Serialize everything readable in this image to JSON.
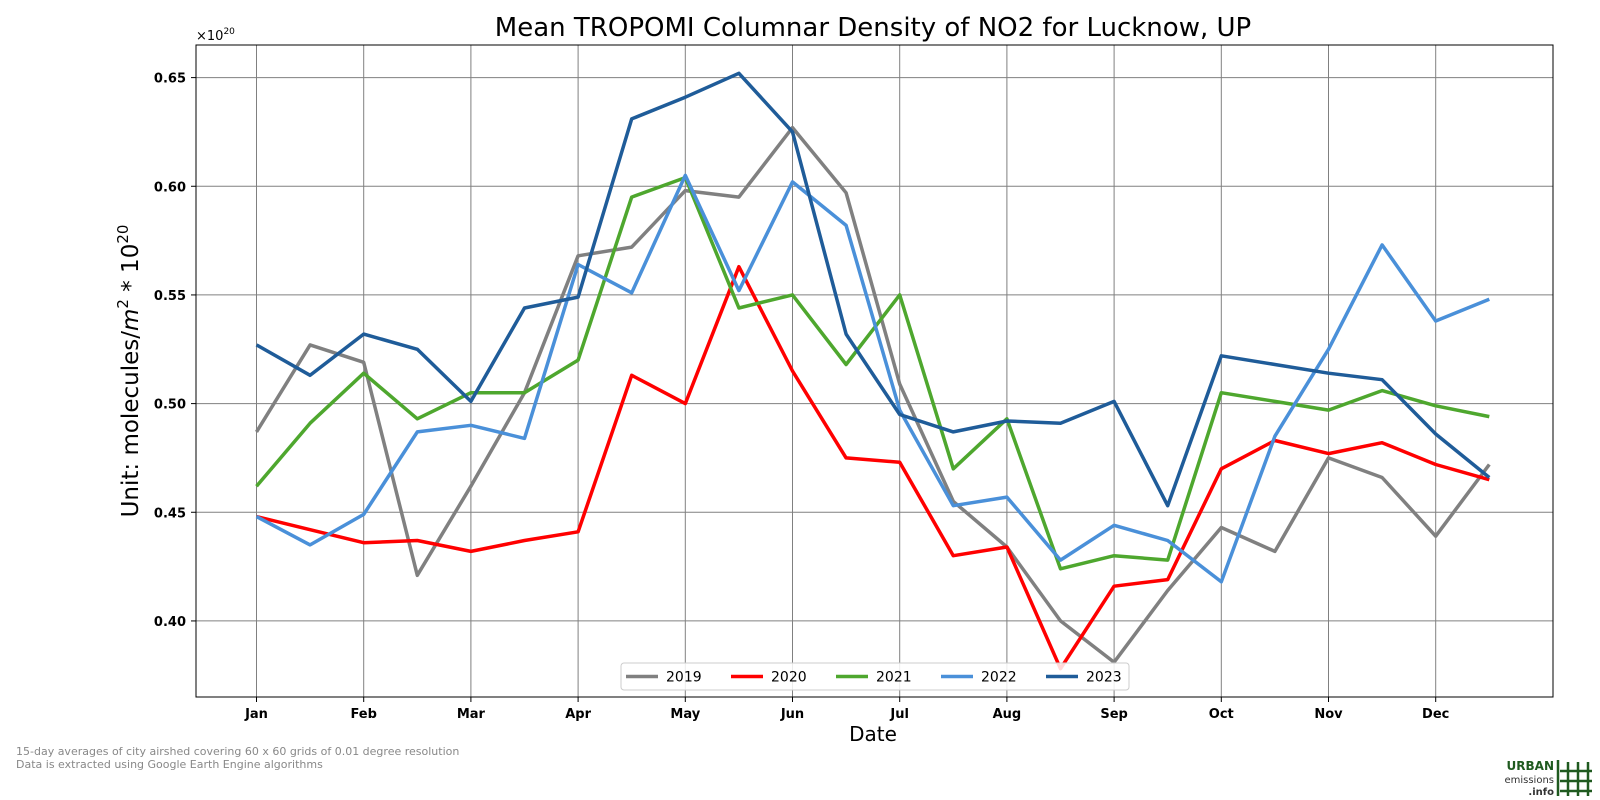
{
  "chart_data": {
    "type": "line",
    "title": "Mean TROPOMI Columnar Density of NO2 for Lucknow, UP",
    "xlabel": "Date",
    "ylabel_prefix": "Unit: molecules/",
    "ylabel_m": "m",
    "ylabel_exp1": "2",
    "ylabel_mid": " * 10",
    "ylabel_exp2": "20",
    "offset_base": "×10",
    "offset_exp": "20",
    "ylim": [
      0.365,
      0.665
    ],
    "yticks": [
      "0.40",
      "0.45",
      "0.50",
      "0.55",
      "0.60",
      "0.65"
    ],
    "month_labels": [
      "Jan",
      "Feb",
      "Mar",
      "Apr",
      "May",
      "Jun",
      "Jul",
      "Aug",
      "Sep",
      "Oct",
      "Nov",
      "Dec"
    ],
    "x": [
      "Jan 1",
      "Jan 16",
      "Feb 1",
      "Feb 16",
      "Mar 1",
      "Mar 16",
      "Apr 1",
      "Apr 16",
      "May 1",
      "May 16",
      "Jun 1",
      "Jun 16",
      "Jul 1",
      "Jul 16",
      "Aug 1",
      "Aug 16",
      "Sep 1",
      "Sep 16",
      "Oct 1",
      "Oct 16",
      "Nov 1",
      "Nov 16",
      "Dec 1",
      "Dec 16"
    ],
    "grid": true,
    "legend_position": "bottom-center",
    "series": [
      {
        "name": "2019",
        "color": "#808080",
        "values": [
          0.487,
          0.527,
          0.519,
          0.421,
          0.462,
          0.505,
          0.568,
          0.572,
          0.598,
          0.595,
          0.627,
          0.597,
          0.509,
          0.455,
          0.434,
          0.4,
          0.381,
          0.414,
          0.443,
          0.432,
          0.475,
          0.466,
          0.439,
          0.472
        ]
      },
      {
        "name": "2020",
        "color": "#ff0000",
        "values": [
          0.448,
          0.442,
          0.436,
          0.437,
          0.432,
          0.437,
          0.441,
          0.513,
          0.5,
          0.563,
          0.515,
          0.475,
          0.473,
          0.43,
          0.434,
          0.378,
          0.416,
          0.419,
          0.47,
          0.483,
          0.477,
          0.482,
          0.472,
          0.465
        ]
      },
      {
        "name": "2021",
        "color": "#4ea72e",
        "values": [
          0.462,
          0.491,
          0.514,
          0.493,
          0.505,
          0.505,
          0.52,
          0.595,
          0.604,
          0.544,
          0.55,
          0.518,
          0.55,
          0.47,
          0.493,
          0.424,
          0.43,
          0.428,
          0.505,
          0.501,
          0.497,
          0.506,
          0.499,
          0.494
        ]
      },
      {
        "name": "2022",
        "color": "#4a90d9",
        "values": [
          0.448,
          0.435,
          0.449,
          0.487,
          0.49,
          0.484,
          0.564,
          0.551,
          0.605,
          0.552,
          0.602,
          0.582,
          0.497,
          0.453,
          0.457,
          0.428,
          0.444,
          0.437,
          0.418,
          0.485,
          0.525,
          0.573,
          0.538,
          0.548
        ]
      },
      {
        "name": "2023",
        "color": "#1f5c99",
        "values": [
          0.527,
          0.513,
          0.532,
          0.525,
          0.501,
          0.544,
          0.549,
          0.631,
          0.641,
          0.652,
          0.625,
          0.532,
          0.495,
          0.487,
          0.492,
          0.491,
          0.501,
          0.453,
          0.522,
          0.518,
          0.514,
          0.511,
          0.486,
          0.466
        ]
      }
    ]
  },
  "footnotes": {
    "line1": "15-day averages of city airshed covering 60 x 60 grids of 0.01 degree resolution",
    "line2": "Data is extracted using Google Earth Engine algorithms"
  },
  "logo": {
    "line1": "URBAN",
    "line2": "emissions",
    "line3": ".info"
  }
}
